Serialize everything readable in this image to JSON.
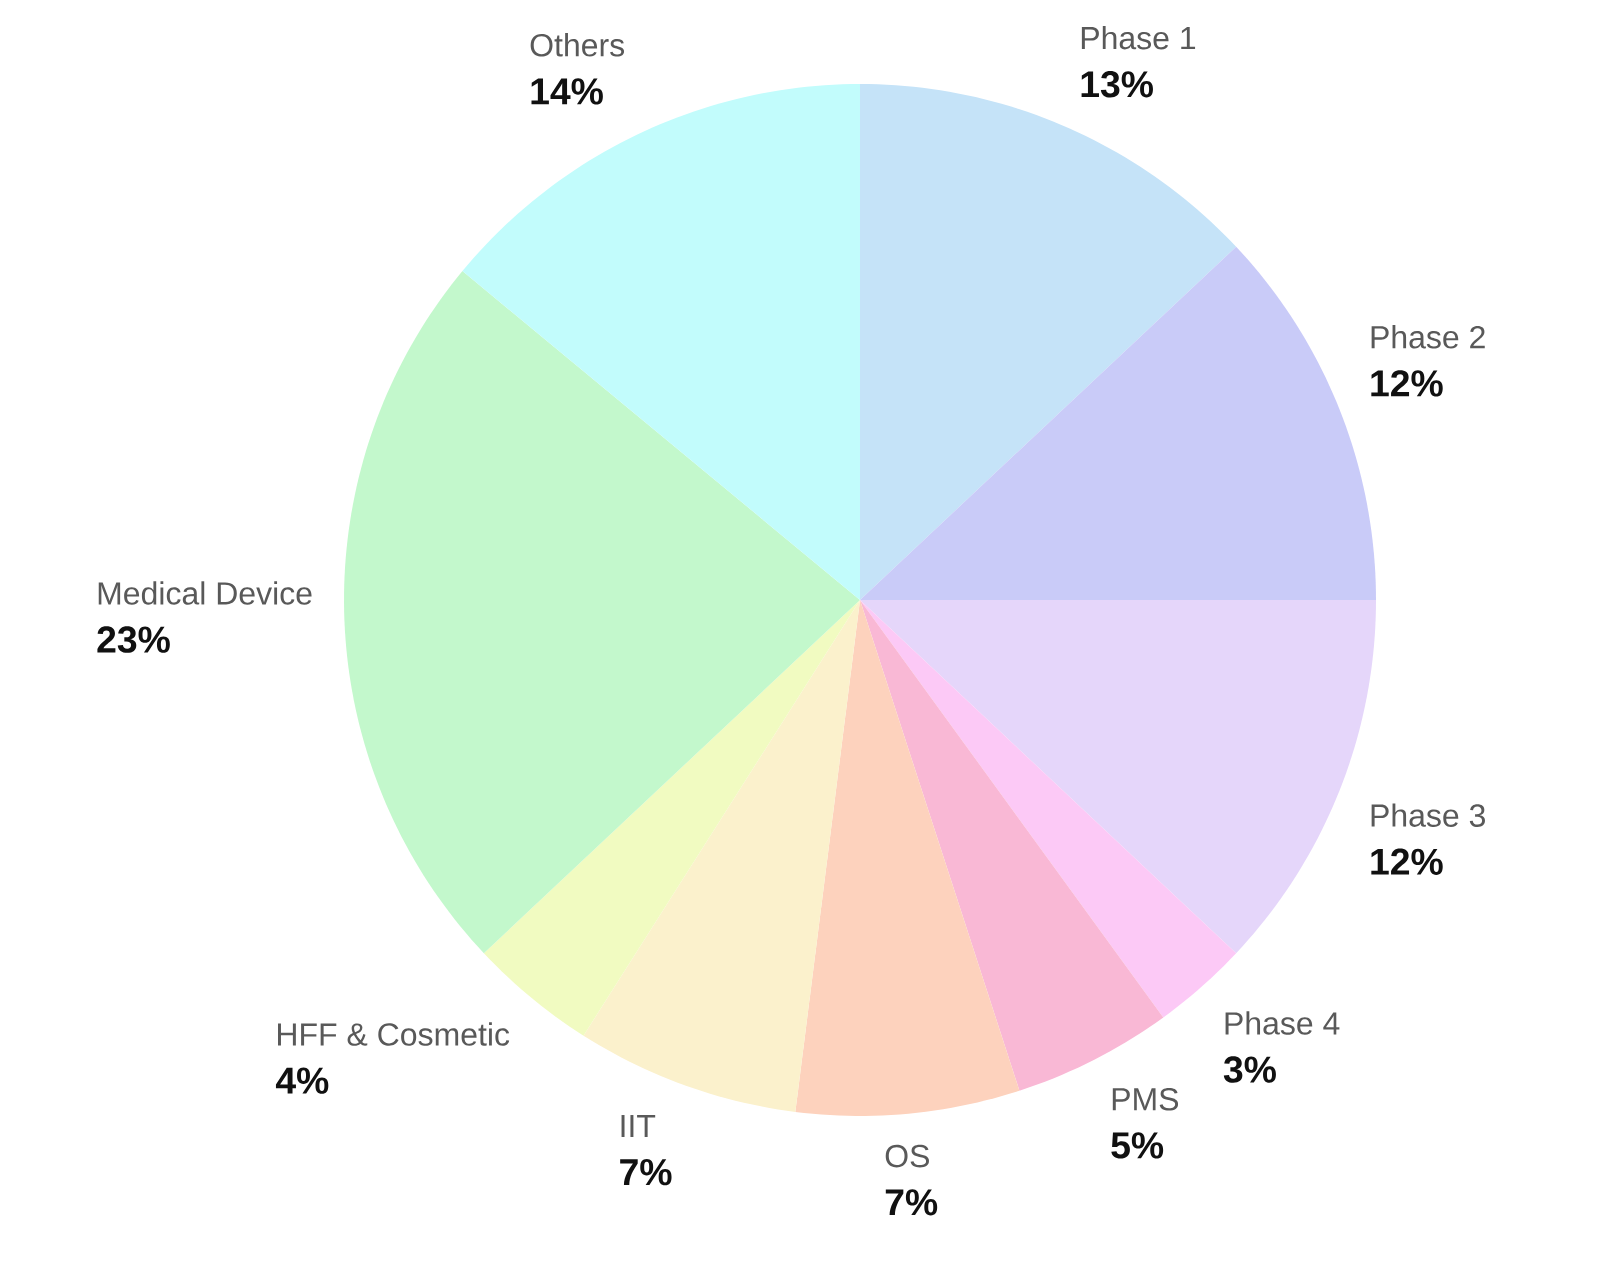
{
  "chart_data": {
    "type": "pie",
    "categories": [
      "Phase 1",
      "Phase 2",
      "Phase 3",
      "Phase 4",
      "PMS",
      "OS",
      "IIT",
      "HFF & Cosmetic",
      "Medical Device",
      "Others"
    ],
    "values": [
      13,
      12,
      12,
      3,
      5,
      7,
      7,
      4,
      23,
      14
    ],
    "colors": [
      "#c5e3f8",
      "#c9cbf8",
      "#e5d6fa",
      "#fcc9f6",
      "#f9b8d5",
      "#fdd2bd",
      "#fbf1cc",
      "#f1fbc1",
      "#c3f8cc",
      "#c2fcfc"
    ],
    "value_labels": [
      "13%",
      "12%",
      "12%",
      "3%",
      "5%",
      "7%",
      "7%",
      "4%",
      "23%",
      "14%"
    ]
  }
}
